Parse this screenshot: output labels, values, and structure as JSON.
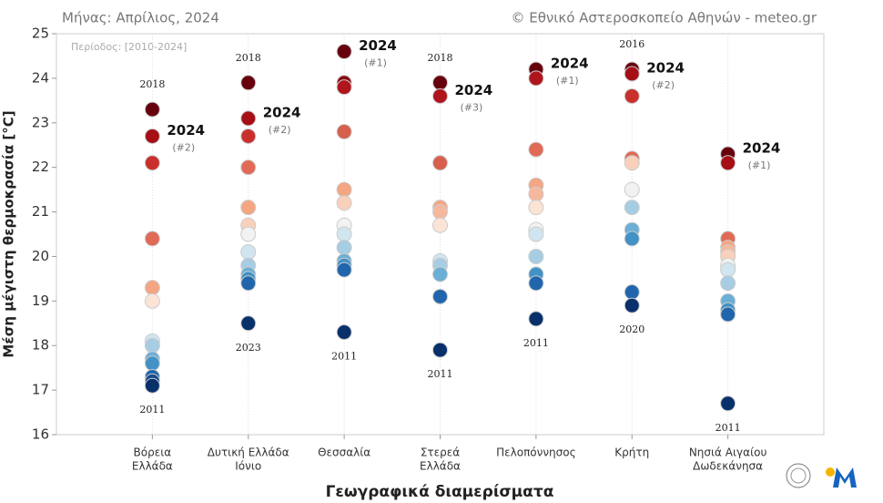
{
  "chart_data": {
    "type": "strip",
    "subtitle": "Μήνας: Απρίλιος, 2024",
    "source": "© Εθνικό Αστεροσκοπείο Αθηνών - meteo.gr",
    "period": "Περίοδος: [2010-2024]",
    "ylabel": "Μέση μέγιστη θερμοκρασία [°C]",
    "xlabel": "Γεωγραφικά διαμερίσματα",
    "ylim": [
      16,
      25
    ],
    "yticks": [
      16,
      17,
      18,
      19,
      20,
      21,
      22,
      23,
      24,
      25
    ],
    "grid": true,
    "groups": [
      {
        "category": [
          "Βόρεια",
          "Ελλάδα"
        ],
        "points": [
          {
            "value": 23.3,
            "color": "#67000d",
            "label": "2018"
          },
          {
            "value": 22.7,
            "color": "#a50f15",
            "label": "2024",
            "rank": "(#2)"
          },
          {
            "value": 22.1,
            "color": "#c9302c"
          },
          {
            "value": 20.4,
            "color": "#e06a55"
          },
          {
            "value": 19.3,
            "color": "#f4a582"
          },
          {
            "value": 19.0,
            "color": "#fbe3d6"
          },
          {
            "value": 18.1,
            "color": "#d1e5f0"
          },
          {
            "value": 18.0,
            "color": "#a6cde3"
          },
          {
            "value": 17.7,
            "color": "#6baed6"
          },
          {
            "value": 17.6,
            "color": "#4292c6"
          },
          {
            "value": 17.3,
            "color": "#2166ac"
          },
          {
            "value": 17.2,
            "color": "#174a8b"
          },
          {
            "value": 17.1,
            "color": "#08306b",
            "label": "2011"
          }
        ]
      },
      {
        "category": [
          "Δυτική Ελλάδα",
          "Ιόνιο"
        ],
        "points": [
          {
            "value": 23.9,
            "color": "#67000d",
            "label": "2018"
          },
          {
            "value": 23.1,
            "color": "#a50f15",
            "label": "2024",
            "rank": "(#2)"
          },
          {
            "value": 22.7,
            "color": "#c9302c"
          },
          {
            "value": 22.0,
            "color": "#e06a55"
          },
          {
            "value": 21.1,
            "color": "#f4a582"
          },
          {
            "value": 20.7,
            "color": "#f9d0bb"
          },
          {
            "value": 20.5,
            "color": "#f2f2f2"
          },
          {
            "value": 20.1,
            "color": "#d1e5f0"
          },
          {
            "value": 19.8,
            "color": "#a6cde3"
          },
          {
            "value": 19.6,
            "color": "#6baed6"
          },
          {
            "value": 19.5,
            "color": "#4292c6"
          },
          {
            "value": 19.4,
            "color": "#2166ac"
          },
          {
            "value": 18.5,
            "color": "#08306b",
            "label": "2023"
          }
        ]
      },
      {
        "category": [
          "Θεσσαλία"
        ],
        "points": [
          {
            "value": 24.6,
            "color": "#67000d",
            "label": "2024",
            "rank": "(#1)"
          },
          {
            "value": 23.9,
            "color": "#8b0a14"
          },
          {
            "value": 23.8,
            "color": "#b0141c"
          },
          {
            "value": 22.8,
            "color": "#d6604d"
          },
          {
            "value": 21.5,
            "color": "#f4a582"
          },
          {
            "value": 21.2,
            "color": "#f9d0bb"
          },
          {
            "value": 20.7,
            "color": "#f2f2f2"
          },
          {
            "value": 20.5,
            "color": "#d1e5f0"
          },
          {
            "value": 20.2,
            "color": "#a6cde3"
          },
          {
            "value": 19.9,
            "color": "#6baed6"
          },
          {
            "value": 19.8,
            "color": "#4292c6"
          },
          {
            "value": 19.7,
            "color": "#2166ac"
          },
          {
            "value": 18.3,
            "color": "#08306b",
            "label": "2011"
          }
        ]
      },
      {
        "category": [
          "Στερεά",
          "Ελλάδα"
        ],
        "points": [
          {
            "value": 23.9,
            "color": "#67000d",
            "label": "2018"
          },
          {
            "value": 23.6,
            "color": "#b0141c",
            "label": "2024",
            "rank": "(#3)"
          },
          {
            "value": 22.1,
            "color": "#d6604d"
          },
          {
            "value": 21.1,
            "color": "#f4a582"
          },
          {
            "value": 21.0,
            "color": "#f6b89c"
          },
          {
            "value": 20.7,
            "color": "#fbe3d6"
          },
          {
            "value": 19.9,
            "color": "#d1e5f0"
          },
          {
            "value": 19.8,
            "color": "#a6cde3"
          },
          {
            "value": 19.6,
            "color": "#6baed6"
          },
          {
            "value": 19.1,
            "color": "#2166ac"
          },
          {
            "value": 17.9,
            "color": "#08306b",
            "label": "2011"
          }
        ]
      },
      {
        "category": [
          "Πελοπόννησος"
        ],
        "points": [
          {
            "value": 24.2,
            "color": "#67000d",
            "label": "2024",
            "rank": "(#1)"
          },
          {
            "value": 24.0,
            "color": "#b0141c"
          },
          {
            "value": 22.4,
            "color": "#e06a55"
          },
          {
            "value": 21.6,
            "color": "#f4a582"
          },
          {
            "value": 21.4,
            "color": "#f6b89c"
          },
          {
            "value": 21.1,
            "color": "#fbe3d6"
          },
          {
            "value": 20.6,
            "color": "#f2f2f2"
          },
          {
            "value": 20.5,
            "color": "#d1e5f0"
          },
          {
            "value": 20.0,
            "color": "#a6cde3"
          },
          {
            "value": 19.6,
            "color": "#4292c6"
          },
          {
            "value": 19.4,
            "color": "#2166ac"
          },
          {
            "value": 18.6,
            "color": "#08306b",
            "label": "2011"
          }
        ]
      },
      {
        "category": [
          "Κρήτη"
        ],
        "points": [
          {
            "value": 24.2,
            "color": "#67000d",
            "label": "2016"
          },
          {
            "value": 24.1,
            "color": "#a50f15",
            "label": "2024",
            "rank": "(#2)"
          },
          {
            "value": 23.6,
            "color": "#c9302c"
          },
          {
            "value": 22.2,
            "color": "#e06a55"
          },
          {
            "value": 22.1,
            "color": "#f9d0bb"
          },
          {
            "value": 21.5,
            "color": "#f2f2f2"
          },
          {
            "value": 21.1,
            "color": "#a6cde3"
          },
          {
            "value": 20.6,
            "color": "#6baed6"
          },
          {
            "value": 20.4,
            "color": "#4292c6"
          },
          {
            "value": 19.2,
            "color": "#2166ac"
          },
          {
            "value": 18.9,
            "color": "#08306b",
            "label": "2020"
          }
        ]
      },
      {
        "category": [
          "Νησιά Αιγαίου",
          "Δωδεκάνησα"
        ],
        "points": [
          {
            "value": 22.3,
            "color": "#67000d",
            "label": "2024",
            "rank": "(#1)"
          },
          {
            "value": 22.1,
            "color": "#a50f15"
          },
          {
            "value": 20.4,
            "color": "#e06a55"
          },
          {
            "value": 20.2,
            "color": "#f4a582"
          },
          {
            "value": 20.1,
            "color": "#f6b89c"
          },
          {
            "value": 20.0,
            "color": "#f9d0bb"
          },
          {
            "value": 19.8,
            "color": "#f2f2f2"
          },
          {
            "value": 19.7,
            "color": "#d1e5f0"
          },
          {
            "value": 19.4,
            "color": "#a6cde3"
          },
          {
            "value": 19.0,
            "color": "#6baed6"
          },
          {
            "value": 18.8,
            "color": "#4292c6"
          },
          {
            "value": 18.7,
            "color": "#2166ac"
          },
          {
            "value": 16.7,
            "color": "#08306b",
            "label": "2011"
          }
        ]
      }
    ]
  }
}
